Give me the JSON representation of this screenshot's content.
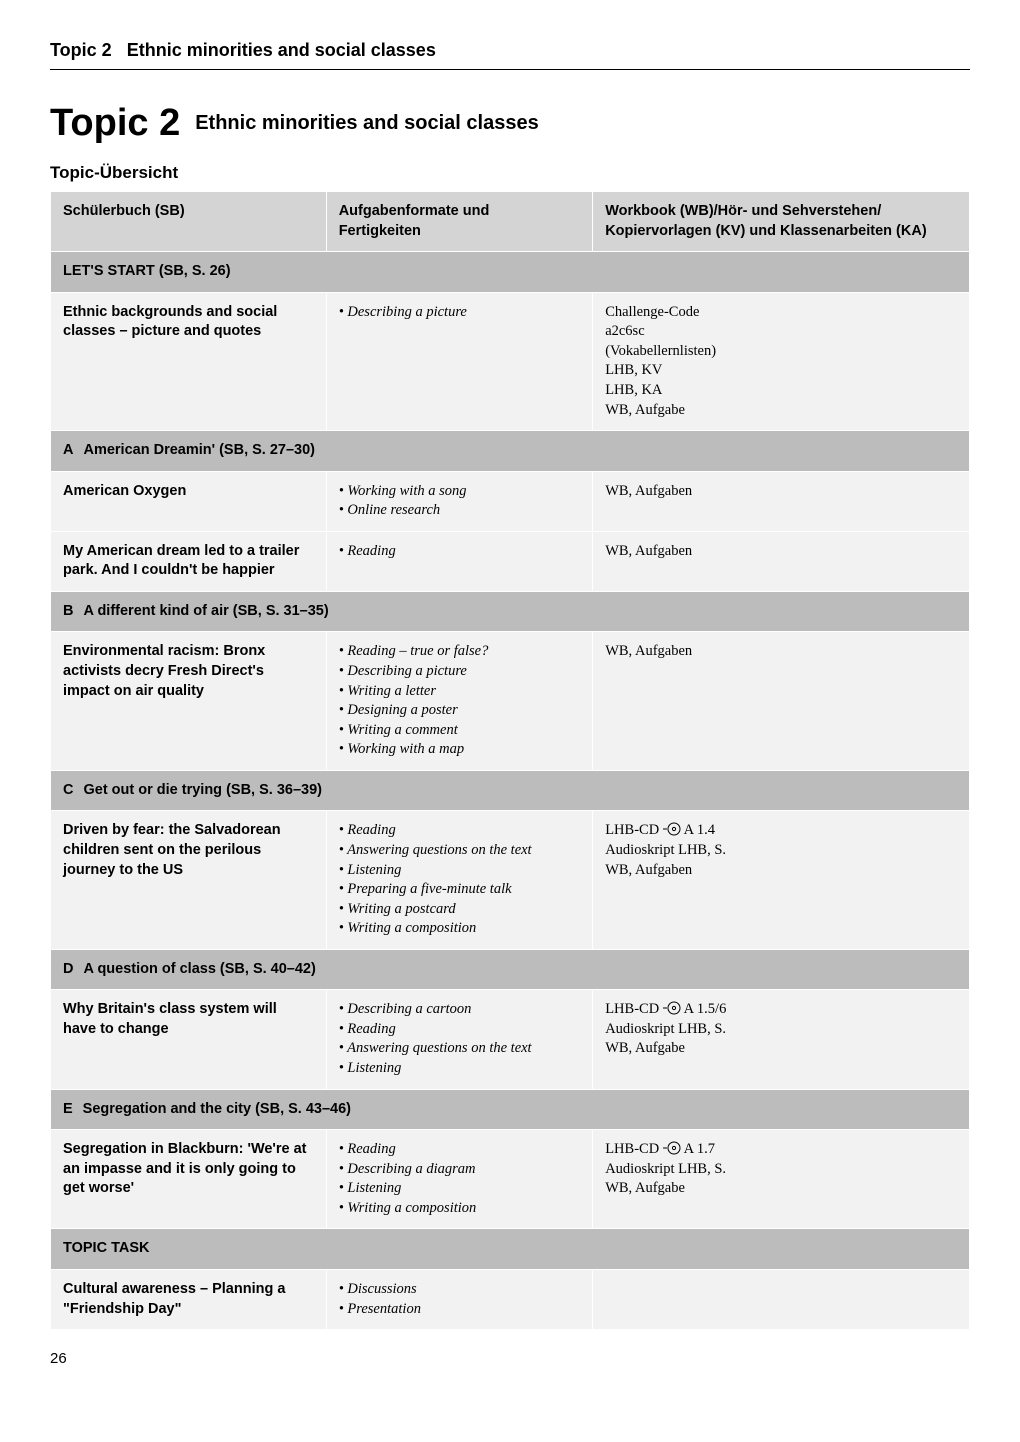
{
  "runningHeader": {
    "topicLabel": "Topic 2",
    "title": "Ethnic minorities and social classes"
  },
  "heading": {
    "big": "Topic 2",
    "sub": "Ethnic minorities and social classes"
  },
  "overviewLabel": "Topic-Übersicht",
  "columns": {
    "col1": "Schülerbuch (SB)",
    "col2a": "Aufgabenformate und",
    "col2b": "Fertigkeiten",
    "col3a": "Workbook (WB)/Hör- und Sehverstehen/",
    "col3b": "Kopiervorlagen (KV) und Klassenarbeiten (KA)"
  },
  "sections": [
    {
      "header": "LET'S START (SB, S. 26)",
      "rows": [
        {
          "c1": "Ethnic backgrounds and social classes – picture and quotes",
          "c2": [
            "Describing a picture"
          ],
          "c3_plain": [
            "Challenge-Code",
            "a2c6sc",
            "(Vokabellernlisten)",
            "LHB, KV",
            "LHB, KA",
            "WB, Aufgabe"
          ]
        }
      ]
    },
    {
      "letter": "A",
      "header": "American Dreamin' (SB, S. 27–30)",
      "rows": [
        {
          "c1": "American Oxygen",
          "c2": [
            "Working with a song",
            "Online research"
          ],
          "c3_plain": [
            "WB, Aufgaben"
          ]
        },
        {
          "c1": "My American dream led to a trailer park. And I couldn't be happier",
          "c2": [
            "Reading"
          ],
          "c3_plain": [
            "WB, Aufgaben"
          ]
        }
      ]
    },
    {
      "letter": "B",
      "header": "A different kind of air (SB, S. 31–35)",
      "rows": [
        {
          "c1": "Environmental racism: Bronx activists decry Fresh Direct's impact on air quality",
          "c2": [
            "Reading – true or false?",
            "Describing a picture",
            "Writing a letter",
            "Designing a poster",
            "Writing a comment",
            "Working with a map"
          ],
          "c3_plain": [
            "WB, Aufgaben"
          ]
        }
      ]
    },
    {
      "letter": "C",
      "header": "Get out or die trying (SB, S. 36–39)",
      "rows": [
        {
          "c1": "Driven by fear: the Salvadorean children sent on the perilous journey to the US",
          "c2": [
            "Reading",
            "Answering questions on the text",
            "Listening",
            "Preparing a five-minute talk",
            "Writing a postcard",
            "Writing a composition"
          ],
          "c3_cd": "A 1.4",
          "c3_rest": [
            "Audioskript LHB, S.",
            "WB, Aufgaben"
          ]
        }
      ]
    },
    {
      "letter": "D",
      "header": "A question of class (SB, S. 40–42)",
      "rows": [
        {
          "c1": "Why Britain's class system will have to change",
          "c2": [
            "Describing a cartoon",
            "Reading",
            "Answering questions on the text",
            "Listening"
          ],
          "c3_cd": "A 1.5/6",
          "c3_rest": [
            "Audioskript LHB, S.",
            "WB, Aufgabe"
          ]
        }
      ]
    },
    {
      "letter": "E",
      "header": "Segregation and the city (SB, S. 43–46)",
      "rows": [
        {
          "c1": "Segregation in Blackburn: 'We're at an impasse and it is only going to get worse'",
          "c2": [
            "Reading",
            "Describing a diagram",
            "Listening",
            "Writing a composition"
          ],
          "c3_cd": "A 1.7",
          "c3_rest": [
            "Audioskript LHB, S.",
            "WB, Aufgabe"
          ]
        }
      ]
    },
    {
      "header": "TOPIC TASK",
      "rows": [
        {
          "c1": "Cultural awareness – Planning a \"Friendship Day\"",
          "c2": [
            "Discussions",
            "Presentation"
          ],
          "c3_plain": []
        }
      ]
    }
  ],
  "cdLabel": "LHB-CD",
  "pageNumber": "26",
  "colWidths": {
    "c1": "30%",
    "c2": "29%",
    "c3": "41%"
  }
}
